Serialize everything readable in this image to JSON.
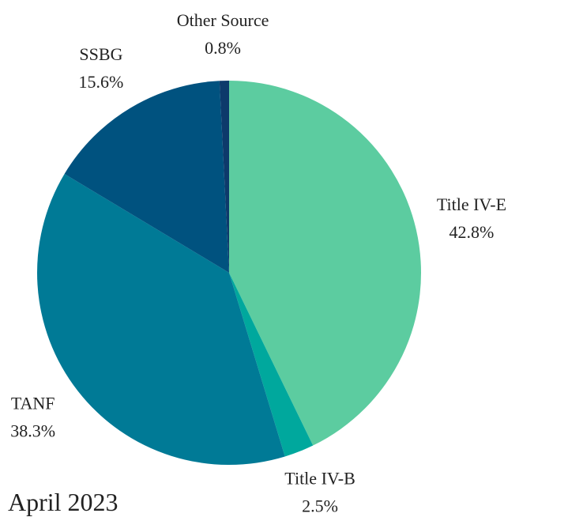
{
  "chart_data": {
    "type": "pie",
    "categories": [
      "Title IV-E",
      "Title IV-B",
      "TANF",
      "SSBG",
      "Other Source"
    ],
    "values": [
      42.8,
      2.5,
      38.3,
      15.6,
      0.8
    ],
    "value_labels": [
      "42.8%",
      "2.5%",
      "38.3%",
      "15.6%",
      "0.8%"
    ],
    "colors": [
      "#5ccca0",
      "#00a89d",
      "#007a96",
      "#00527f",
      "#0d3a6b"
    ],
    "annotation": "April 2023"
  }
}
